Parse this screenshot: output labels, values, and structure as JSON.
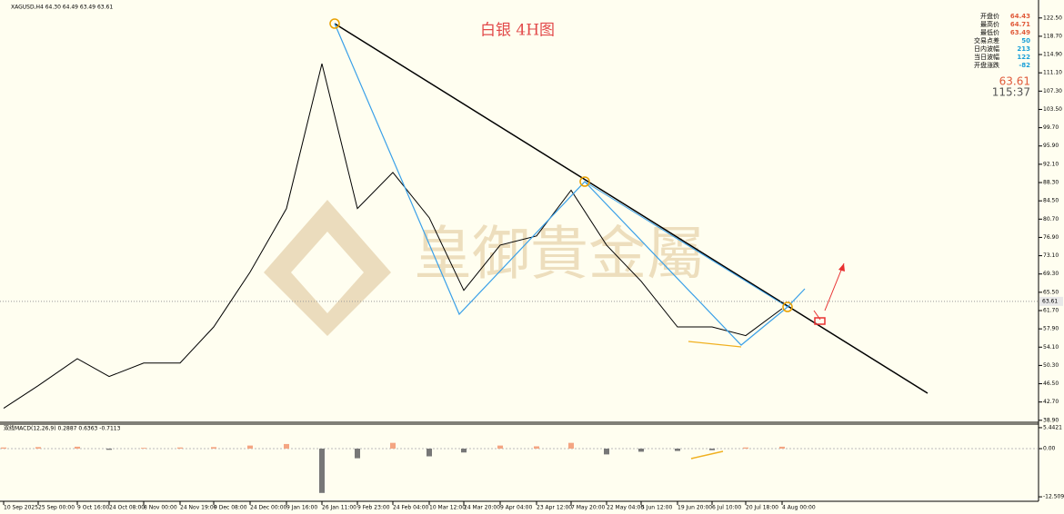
{
  "chart_data": [
    {
      "type": "line",
      "header": "XAGUSD,H4 64.30 64.49 63.49 63.61",
      "title": "白银 4H图",
      "watermark": "皇御貴金屬",
      "categories": [
        "10 Sep 2025",
        "25 Sep 00:00",
        "9 Oct 16:00",
        "24 Oct 08:00",
        "8 Nov 00:00",
        "24 Nov 19:00",
        "9 Dec 08:00",
        "24 Dec 00:00",
        "9 Jan 16:00",
        "26 Jan 11:00",
        "9 Feb 23:00",
        "24 Feb 04:00",
        "10 Mar 12:00",
        "24 Mar 20:00",
        "9 Apr 04:00",
        "23 Apr 12:00",
        "7 May 20:00",
        "22 May 04:00",
        "5 Jun 12:00",
        "19 Jun 20:00",
        "6 Jul 10:00",
        "20 Jul 18:00",
        "4 Aug 00:00"
      ],
      "series": [
        {
          "color": "#000000",
          "values": [
            41.4,
            46.1,
            51.7,
            48,
            50.8,
            50.8,
            58.3,
            69.7,
            82.9,
            113,
            82.9,
            90.4,
            81,
            65.9,
            75.3,
            77.2,
            86.7,
            75.3,
            67.8,
            58.3,
            58.3,
            56.5,
            62.1
          ]
        }
      ],
      "current_price": 63.61,
      "ylim": [
        38.3,
        125.1
      ],
      "yticks": [
        {
          "value": 122.5,
          "label": "122.50"
        },
        {
          "value": 118.7,
          "label": "118.70"
        },
        {
          "value": 114.9,
          "label": "114.90"
        },
        {
          "value": 111.1,
          "label": "111.10"
        },
        {
          "value": 107.3,
          "label": "107.30"
        },
        {
          "value": 103.5,
          "label": "103.50"
        },
        {
          "value": 99.7,
          "label": "99.70"
        },
        {
          "value": 95.9,
          "label": "95.90"
        },
        {
          "value": 92.1,
          "label": "92.10"
        },
        {
          "value": 88.3,
          "label": "88.30"
        },
        {
          "value": 84.5,
          "label": "84.50"
        },
        {
          "value": 80.7,
          "label": "80.70"
        },
        {
          "value": 76.9,
          "label": "76.90"
        },
        {
          "value": 73.1,
          "label": "73.10"
        },
        {
          "value": 69.3,
          "label": "69.30"
        },
        {
          "value": 65.5,
          "label": "65.50"
        },
        {
          "value": 61.7,
          "label": "61.70"
        },
        {
          "value": 57.9,
          "label": "57.90"
        },
        {
          "value": 54.1,
          "label": "54.10"
        },
        {
          "value": 50.3,
          "label": "50.30"
        },
        {
          "value": 46.5,
          "label": "46.50"
        },
        {
          "value": 42.7,
          "label": "42.70"
        },
        {
          "value": 38.9,
          "label": "38.90"
        }
      ],
      "info": [
        {
          "label": "开盘价",
          "value": 64.43
        },
        {
          "label": "最高价",
          "value": 64.71
        },
        {
          "label": "最低价",
          "value": 63.49
        },
        {
          "label": "交易点差",
          "value": 50
        },
        {
          "label": "日内波幅",
          "value": 213
        },
        {
          "label": "当日波幅",
          "value": 122
        },
        {
          "label": "开盘涨跌",
          "value": -82
        }
      ],
      "big_price": 63.61,
      "timer": "115:37"
    },
    {
      "type": "bar",
      "label": "双线MACD(12,26,9) 0.2887 0.6363 -0.7113",
      "values": [
        0.3,
        0.4,
        0.5,
        -0.3,
        0.2,
        0.3,
        0.4,
        0.8,
        1.2,
        -11.5,
        -2.5,
        1.5,
        -2.0,
        -1.0,
        0.8,
        0.6,
        1.5,
        -1.5,
        -0.8,
        -0.6,
        -0.4,
        0.3,
        0.5
      ],
      "positive_color": "#f4a582",
      "negative_color": "#777777",
      "ylim": [
        -13.67,
        6.37
      ],
      "yticks": [
        5.4421,
        {
          "value": 0,
          "label": "0.00"
        },
        {
          "value": -12.509,
          "label": "-12.5090"
        }
      ]
    }
  ]
}
